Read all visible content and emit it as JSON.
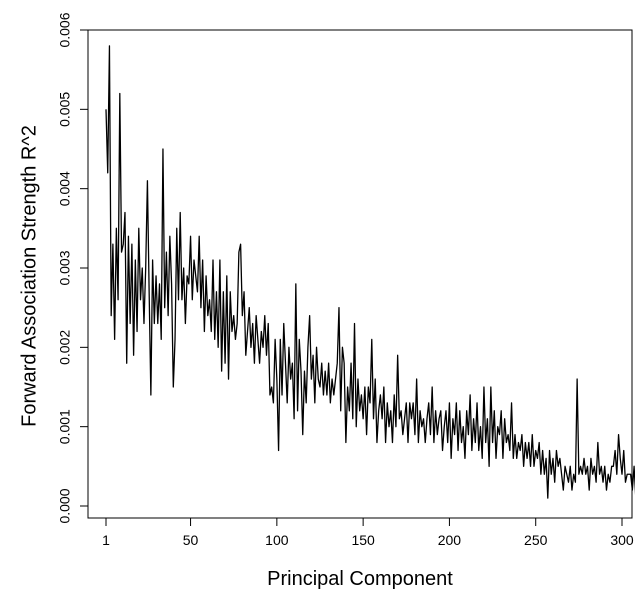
{
  "chart_data": {
    "type": "line",
    "title": "",
    "xlabel": "Principal Component",
    "ylabel": "Forward Association Strength R^2",
    "xlim": [
      1,
      300
    ],
    "ylim": [
      0,
      0.006
    ],
    "x_ticks": [
      1,
      50,
      100,
      150,
      200,
      250,
      300
    ],
    "x_tick_labels": [
      "1",
      "50",
      "100",
      "150",
      "200",
      "250",
      "300"
    ],
    "y_ticks": [
      0,
      0.001,
      0.002,
      0.003,
      0.004,
      0.005,
      0.006
    ],
    "y_tick_labels": [
      "0.000",
      "0.001",
      "0.002",
      "0.003",
      "0.004",
      "0.005",
      "0.006"
    ],
    "grid": false,
    "legend": "none",
    "line_color": "#000000",
    "series": [
      {
        "x_start": 1,
        "x_step": 1,
        "values": [
          0.005,
          0.0042,
          0.0058,
          0.0024,
          0.0033,
          0.0021,
          0.0035,
          0.0026,
          0.0052,
          0.0032,
          0.0033,
          0.0037,
          0.0018,
          0.0034,
          0.0023,
          0.0033,
          0.0019,
          0.0031,
          0.0022,
          0.0035,
          0.0026,
          0.003,
          0.0023,
          0.003,
          0.0041,
          0.0027,
          0.0014,
          0.0031,
          0.0023,
          0.0029,
          0.0023,
          0.0028,
          0.0021,
          0.0045,
          0.0025,
          0.0032,
          0.0024,
          0.0034,
          0.0028,
          0.0015,
          0.0021,
          0.0035,
          0.0026,
          0.0037,
          0.0026,
          0.003,
          0.0023,
          0.0029,
          0.0028,
          0.0034,
          0.0026,
          0.0031,
          0.0029,
          0.0027,
          0.0034,
          0.0025,
          0.0031,
          0.0022,
          0.0029,
          0.0024,
          0.0026,
          0.0022,
          0.0031,
          0.0021,
          0.0027,
          0.002,
          0.0031,
          0.0017,
          0.0027,
          0.0018,
          0.0029,
          0.0016,
          0.0027,
          0.0022,
          0.0024,
          0.0021,
          0.0023,
          0.0032,
          0.0033,
          0.0024,
          0.0027,
          0.0019,
          0.0022,
          0.0025,
          0.002,
          0.0023,
          0.0018,
          0.0024,
          0.0021,
          0.0018,
          0.0022,
          0.002,
          0.0024,
          0.0019,
          0.0023,
          0.0014,
          0.0015,
          0.0013,
          0.0021,
          0.0016,
          0.0007,
          0.0021,
          0.0014,
          0.0023,
          0.0018,
          0.0013,
          0.002,
          0.0016,
          0.0018,
          0.0011,
          0.0028,
          0.0012,
          0.0021,
          0.0017,
          0.0009,
          0.0017,
          0.0013,
          0.002,
          0.0024,
          0.0016,
          0.0019,
          0.0013,
          0.002,
          0.0016,
          0.0015,
          0.0018,
          0.0014,
          0.0017,
          0.0014,
          0.0018,
          0.0013,
          0.0016,
          0.0014,
          0.0016,
          0.0018,
          0.0025,
          0.0012,
          0.002,
          0.0018,
          0.0008,
          0.0015,
          0.0012,
          0.0018,
          0.0011,
          0.0023,
          0.001,
          0.0016,
          0.0012,
          0.0014,
          0.0011,
          0.0015,
          0.0009,
          0.0015,
          0.0013,
          0.0021,
          0.0011,
          0.0016,
          0.0008,
          0.0012,
          0.0014,
          0.0011,
          0.0015,
          0.0008,
          0.0013,
          0.001,
          0.0012,
          0.0008,
          0.0014,
          0.001,
          0.0019,
          0.0011,
          0.0012,
          0.0009,
          0.0011,
          0.0013,
          0.0008,
          0.0013,
          0.0011,
          0.0013,
          0.0009,
          0.0016,
          0.0008,
          0.0012,
          0.001,
          0.0011,
          0.0008,
          0.0011,
          0.0013,
          0.0009,
          0.0015,
          0.0008,
          0.0012,
          0.0009,
          0.0011,
          0.0012,
          0.0007,
          0.001,
          0.0012,
          0.0008,
          0.0013,
          0.0006,
          0.0011,
          0.0009,
          0.0013,
          0.0007,
          0.0012,
          0.0008,
          0.001,
          0.0006,
          0.0012,
          0.0009,
          0.0014,
          0.0007,
          0.0011,
          0.0008,
          0.0013,
          0.0007,
          0.001,
          0.0006,
          0.0015,
          0.0008,
          0.0011,
          0.0005,
          0.0015,
          0.0008,
          0.0012,
          0.0006,
          0.001,
          0.0009,
          0.0012,
          0.0006,
          0.0011,
          0.0008,
          0.0009,
          0.0007,
          0.0013,
          0.0006,
          0.0009,
          0.0006,
          0.0008,
          0.0007,
          0.0009,
          0.0005,
          0.0008,
          0.0006,
          0.0008,
          0.0005,
          0.0009,
          0.0005,
          0.0007,
          0.0006,
          0.0008,
          0.0004,
          0.0007,
          0.0004,
          0.0006,
          0.0001,
          0.0007,
          0.0004,
          0.0006,
          0.0003,
          0.0007,
          0.0005,
          0.0006,
          0.0004,
          0.0002,
          0.0005,
          0.0004,
          0.0003,
          0.0005,
          0.0002,
          0.0004,
          0.0003,
          0.0016,
          0.0004,
          0.0005,
          0.0004,
          0.0006,
          0.0004,
          0.0005,
          0.0002,
          0.0006,
          0.0004,
          0.0005,
          0.0003,
          0.0008,
          0.0004,
          0.0005,
          0.0003,
          0.0005,
          0.0002,
          0.0004,
          0.0003,
          0.0005,
          0.0005,
          0.0007,
          0.0004,
          0.0009,
          0.0006,
          0.0004,
          0.0007,
          0.0003,
          0.0004,
          0.0004,
          0.0004,
          0.0002,
          0.0005,
          0.0001,
          0.0003,
          0.0007
        ]
      }
    ]
  }
}
